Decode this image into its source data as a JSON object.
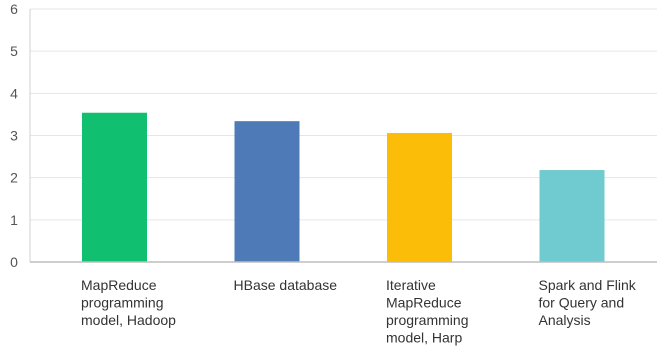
{
  "chart_data": {
    "type": "bar",
    "categories": [
      [
        "MapReduce",
        "programming",
        "model, Hadoop"
      ],
      [
        "HBase database"
      ],
      [
        "Iterative",
        "MapReduce",
        "programming",
        "model, Harp"
      ],
      [
        "Spark and Flink",
        "for Query and",
        "Analysis"
      ]
    ],
    "values": [
      3.54,
      3.34,
      3.06,
      2.18
    ],
    "colors": [
      "#10c070",
      "#4e7bb8",
      "#fbbd08",
      "#6fcbcf"
    ],
    "ylim": [
      0,
      6
    ],
    "yticks": [
      0,
      1,
      2,
      3,
      4,
      5,
      6
    ],
    "ytick_labels": [
      "0",
      "1",
      "2",
      "3",
      "4",
      "5",
      "6"
    ],
    "title": "",
    "xlabel": "",
    "ylabel": "",
    "grid": "horizontal"
  }
}
